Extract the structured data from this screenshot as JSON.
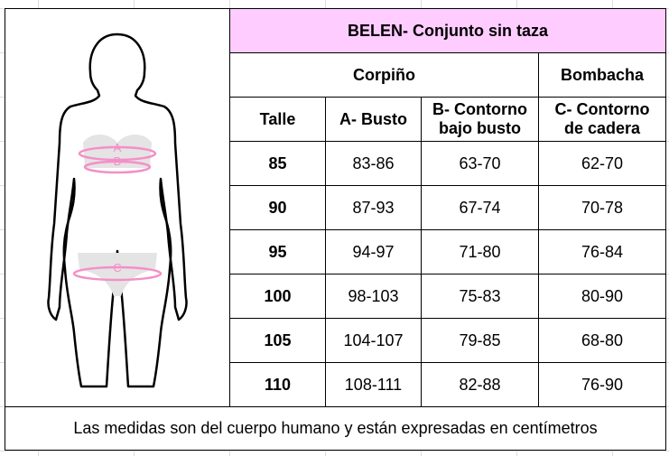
{
  "title": "BELEN- Conjunto sin taza",
  "groups": {
    "corpino": "Corpiño",
    "bombacha": "Bombacha"
  },
  "columns": {
    "talle": "Talle",
    "busto": "A- Busto",
    "bajo_busto_1": "B- Contorno",
    "bajo_busto_2": "bajo busto",
    "cadera_1": "C- Contorno",
    "cadera_2": "de cadera"
  },
  "rows": [
    {
      "talle": "85",
      "busto": "83-86",
      "bajo_busto": "63-70",
      "cadera": "62-70"
    },
    {
      "talle": "90",
      "busto": "87-93",
      "bajo_busto": "67-74",
      "cadera": "70-78"
    },
    {
      "talle": "95",
      "busto": "94-97",
      "bajo_busto": "71-80",
      "cadera": "76-84"
    },
    {
      "talle": "100",
      "busto": "98-103",
      "bajo_busto": "75-83",
      "cadera": "80-90"
    },
    {
      "talle": "105",
      "busto": "104-107",
      "bajo_busto": "79-85",
      "cadera": "68-80"
    },
    {
      "talle": "110",
      "busto": "108-111",
      "bajo_busto": "82-88",
      "cadera": "76-90"
    }
  ],
  "figure": {
    "labels": [
      "A",
      "B",
      "C"
    ],
    "accent": "#f48fc8",
    "garment": "#e4e4e4"
  },
  "footer": "Las medidas son del cuerpo humano y están expresadas en centímetros"
}
